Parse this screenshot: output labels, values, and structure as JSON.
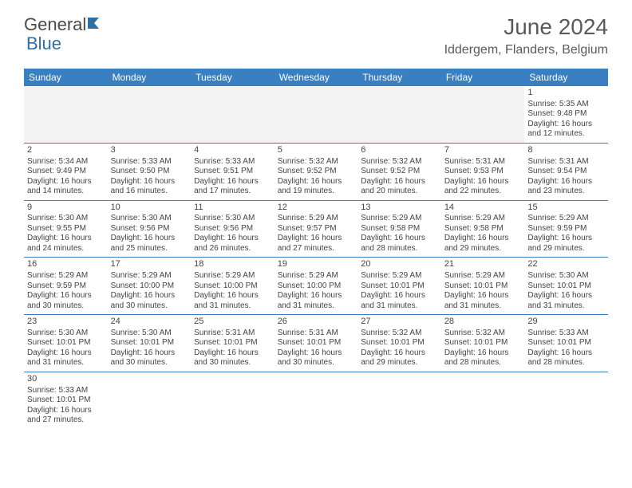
{
  "brand": {
    "part1": "General",
    "part2": "Blue"
  },
  "title": "June 2024",
  "location": "Iddergem, Flanders, Belgium",
  "colors": {
    "header_bg": "#3a7fbf",
    "header_text": "#ffffff",
    "border": "#3a7fbf",
    "text": "#444444",
    "logo_gray": "#4a4a4a",
    "logo_blue": "#2f6fa8",
    "blank_bg": "#f3f3f3"
  },
  "dayHeaders": [
    "Sunday",
    "Monday",
    "Tuesday",
    "Wednesday",
    "Thursday",
    "Friday",
    "Saturday"
  ],
  "weeks": [
    [
      null,
      null,
      null,
      null,
      null,
      null,
      {
        "n": 1,
        "sr": "5:35 AM",
        "ss": "9:48 PM",
        "dl": "16 hours and 12 minutes."
      }
    ],
    [
      {
        "n": 2,
        "sr": "5:34 AM",
        "ss": "9:49 PM",
        "dl": "16 hours and 14 minutes."
      },
      {
        "n": 3,
        "sr": "5:33 AM",
        "ss": "9:50 PM",
        "dl": "16 hours and 16 minutes."
      },
      {
        "n": 4,
        "sr": "5:33 AM",
        "ss": "9:51 PM",
        "dl": "16 hours and 17 minutes."
      },
      {
        "n": 5,
        "sr": "5:32 AM",
        "ss": "9:52 PM",
        "dl": "16 hours and 19 minutes."
      },
      {
        "n": 6,
        "sr": "5:32 AM",
        "ss": "9:52 PM",
        "dl": "16 hours and 20 minutes."
      },
      {
        "n": 7,
        "sr": "5:31 AM",
        "ss": "9:53 PM",
        "dl": "16 hours and 22 minutes."
      },
      {
        "n": 8,
        "sr": "5:31 AM",
        "ss": "9:54 PM",
        "dl": "16 hours and 23 minutes."
      }
    ],
    [
      {
        "n": 9,
        "sr": "5:30 AM",
        "ss": "9:55 PM",
        "dl": "16 hours and 24 minutes."
      },
      {
        "n": 10,
        "sr": "5:30 AM",
        "ss": "9:56 PM",
        "dl": "16 hours and 25 minutes."
      },
      {
        "n": 11,
        "sr": "5:30 AM",
        "ss": "9:56 PM",
        "dl": "16 hours and 26 minutes."
      },
      {
        "n": 12,
        "sr": "5:29 AM",
        "ss": "9:57 PM",
        "dl": "16 hours and 27 minutes."
      },
      {
        "n": 13,
        "sr": "5:29 AM",
        "ss": "9:58 PM",
        "dl": "16 hours and 28 minutes."
      },
      {
        "n": 14,
        "sr": "5:29 AM",
        "ss": "9:58 PM",
        "dl": "16 hours and 29 minutes."
      },
      {
        "n": 15,
        "sr": "5:29 AM",
        "ss": "9:59 PM",
        "dl": "16 hours and 29 minutes."
      }
    ],
    [
      {
        "n": 16,
        "sr": "5:29 AM",
        "ss": "9:59 PM",
        "dl": "16 hours and 30 minutes."
      },
      {
        "n": 17,
        "sr": "5:29 AM",
        "ss": "10:00 PM",
        "dl": "16 hours and 30 minutes."
      },
      {
        "n": 18,
        "sr": "5:29 AM",
        "ss": "10:00 PM",
        "dl": "16 hours and 31 minutes."
      },
      {
        "n": 19,
        "sr": "5:29 AM",
        "ss": "10:00 PM",
        "dl": "16 hours and 31 minutes."
      },
      {
        "n": 20,
        "sr": "5:29 AM",
        "ss": "10:01 PM",
        "dl": "16 hours and 31 minutes."
      },
      {
        "n": 21,
        "sr": "5:29 AM",
        "ss": "10:01 PM",
        "dl": "16 hours and 31 minutes."
      },
      {
        "n": 22,
        "sr": "5:30 AM",
        "ss": "10:01 PM",
        "dl": "16 hours and 31 minutes."
      }
    ],
    [
      {
        "n": 23,
        "sr": "5:30 AM",
        "ss": "10:01 PM",
        "dl": "16 hours and 31 minutes."
      },
      {
        "n": 24,
        "sr": "5:30 AM",
        "ss": "10:01 PM",
        "dl": "16 hours and 30 minutes."
      },
      {
        "n": 25,
        "sr": "5:31 AM",
        "ss": "10:01 PM",
        "dl": "16 hours and 30 minutes."
      },
      {
        "n": 26,
        "sr": "5:31 AM",
        "ss": "10:01 PM",
        "dl": "16 hours and 30 minutes."
      },
      {
        "n": 27,
        "sr": "5:32 AM",
        "ss": "10:01 PM",
        "dl": "16 hours and 29 minutes."
      },
      {
        "n": 28,
        "sr": "5:32 AM",
        "ss": "10:01 PM",
        "dl": "16 hours and 28 minutes."
      },
      {
        "n": 29,
        "sr": "5:33 AM",
        "ss": "10:01 PM",
        "dl": "16 hours and 28 minutes."
      }
    ],
    [
      {
        "n": 30,
        "sr": "5:33 AM",
        "ss": "10:01 PM",
        "dl": "16 hours and 27 minutes."
      },
      null,
      null,
      null,
      null,
      null,
      null
    ]
  ],
  "labels": {
    "sunrise": "Sunrise:",
    "sunset": "Sunset:",
    "daylight": "Daylight:"
  }
}
